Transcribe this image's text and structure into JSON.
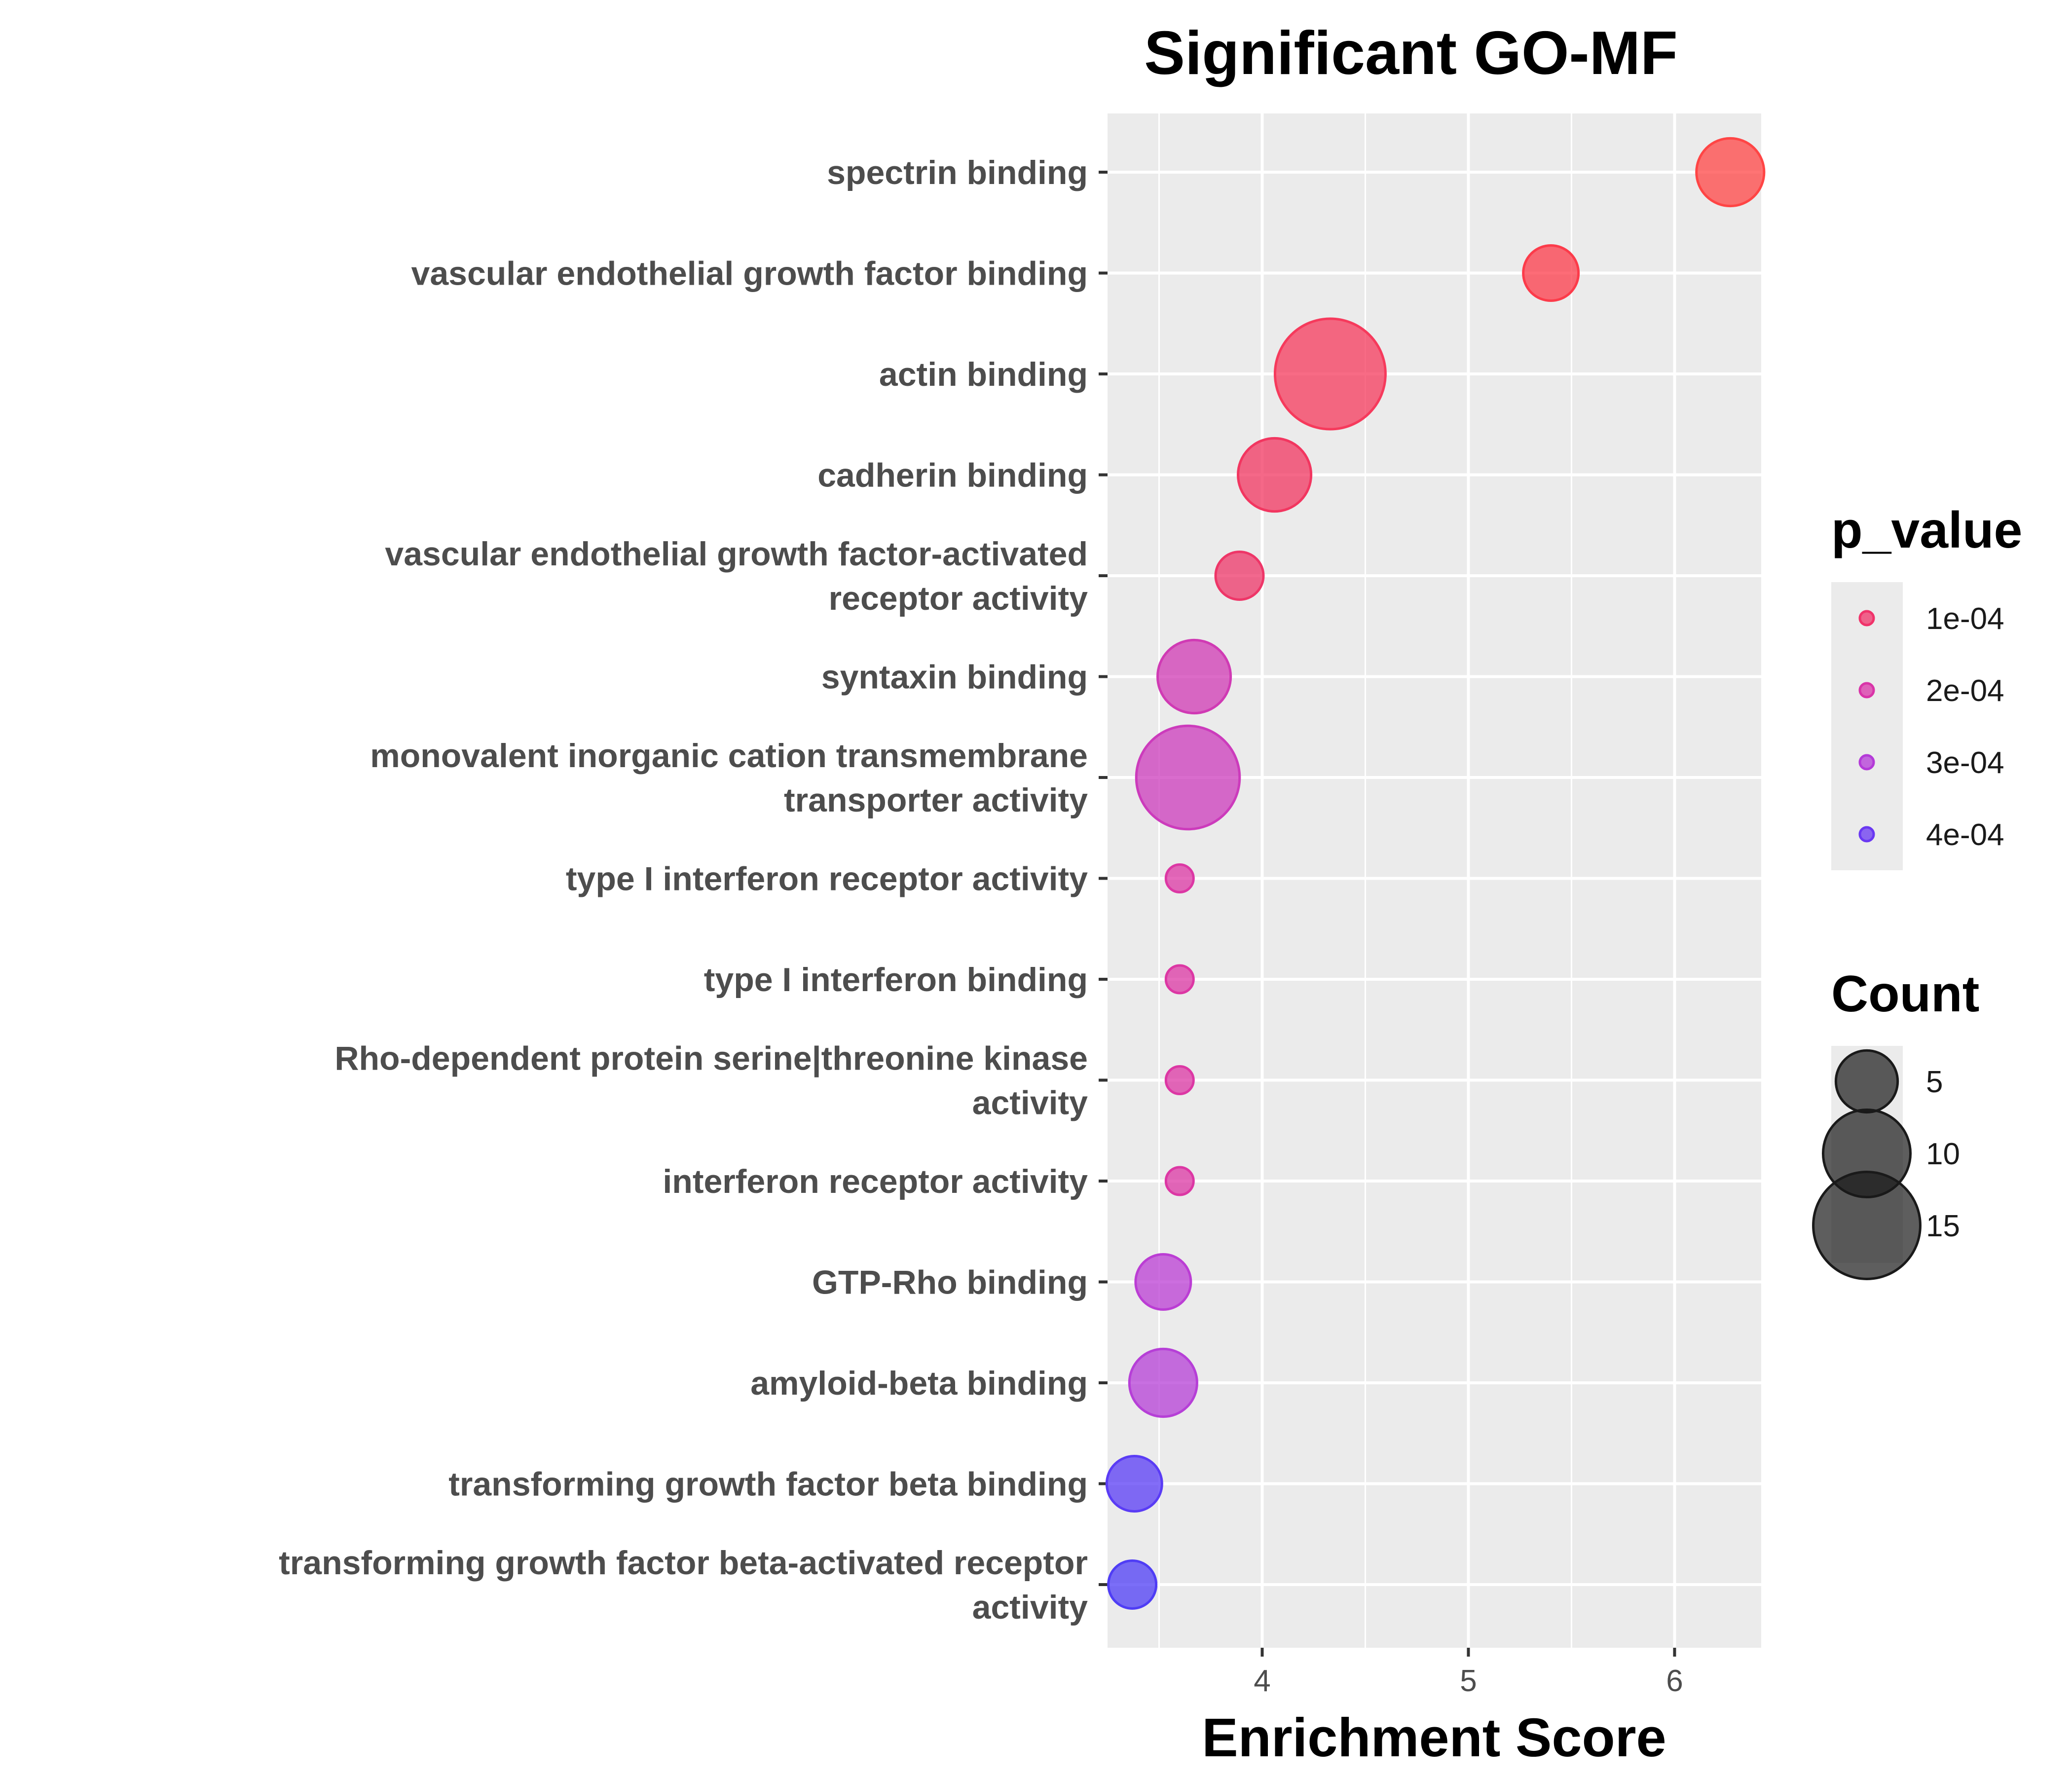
{
  "chart_data": {
    "type": "scatter",
    "title": "Significant GO-MF",
    "xlabel": "Enrichment Score",
    "ylabel": "",
    "xlim": [
      3.25,
      6.42
    ],
    "xticks": [
      "4",
      "5",
      "6"
    ],
    "grid": true,
    "legend_position": "right",
    "points": [
      {
        "term": "spectrin binding",
        "lines": [
          "spectrin binding"
        ],
        "enrichment_score": 6.27,
        "p_value": 3e-05,
        "count": 6,
        "color": "#ff4545"
      },
      {
        "term": "vascular endothelial growth factor binding",
        "lines": [
          "vascular endothelial growth factor binding"
        ],
        "enrichment_score": 5.4,
        "p_value": 4e-05,
        "count": 4,
        "color": "#fc3b4a"
      },
      {
        "term": "actin binding",
        "lines": [
          "actin binding"
        ],
        "enrichment_score": 4.33,
        "p_value": 9e-05,
        "count": 16,
        "color": "#f63a5c"
      },
      {
        "term": "cadherin binding",
        "lines": [
          "cadherin binding"
        ],
        "enrichment_score": 4.06,
        "p_value": 9e-05,
        "count": 7,
        "color": "#f23660"
      },
      {
        "term": "vascular endothelial growth factor-activated receptor activity",
        "lines": [
          "vascular endothelial growth factor-activated",
          "receptor activity"
        ],
        "enrichment_score": 3.89,
        "p_value": 0.00011,
        "count": 3,
        "color": "#ee3668"
      },
      {
        "term": "syntaxin binding",
        "lines": [
          "syntaxin binding"
        ],
        "enrichment_score": 3.67,
        "p_value": 0.00022,
        "count": 7,
        "color": "#d03ab4"
      },
      {
        "term": "monovalent inorganic cation transmembrane transporter activity",
        "lines": [
          "monovalent inorganic cation transmembrane",
          "transporter activity"
        ],
        "enrichment_score": 3.64,
        "p_value": 0.00023,
        "count": 14,
        "color": "#cc3bbc"
      },
      {
        "term": "type I interferon receptor activity",
        "lines": [
          "type I interferon receptor activity"
        ],
        "enrichment_score": 3.6,
        "p_value": 0.00019,
        "count": 1,
        "color": "#dc37a4"
      },
      {
        "term": "type I interferon binding",
        "lines": [
          "type I interferon binding"
        ],
        "enrichment_score": 3.6,
        "p_value": 0.00019,
        "count": 1,
        "color": "#dc37a4"
      },
      {
        "term": "Rho-dependent protein serine|threonine kinase activity",
        "lines": [
          "Rho-dependent protein serine|threonine kinase",
          "activity"
        ],
        "enrichment_score": 3.6,
        "p_value": 0.00019,
        "count": 1,
        "color": "#dc37a4"
      },
      {
        "term": "interferon receptor activity",
        "lines": [
          "interferon receptor activity"
        ],
        "enrichment_score": 3.6,
        "p_value": 0.00019,
        "count": 1,
        "color": "#dc37a4"
      },
      {
        "term": "GTP-Rho binding",
        "lines": [
          "GTP-Rho binding"
        ],
        "enrichment_score": 3.52,
        "p_value": 0.00029,
        "count": 4,
        "color": "#bb3dd4"
      },
      {
        "term": "amyloid-beta binding",
        "lines": [
          "amyloid-beta binding"
        ],
        "enrichment_score": 3.52,
        "p_value": 0.00029,
        "count": 6,
        "color": "#b63fd7"
      },
      {
        "term": "transforming growth factor beta binding",
        "lines": [
          "transforming growth factor beta binding"
        ],
        "enrichment_score": 3.38,
        "p_value": 0.00043,
        "count": 4,
        "color": "#5a3cf5"
      },
      {
        "term": "transforming growth factor beta-activated receptor activity",
        "lines": [
          "transforming growth factor beta-activated receptor",
          "activity"
        ],
        "enrichment_score": 3.37,
        "p_value": 0.00043,
        "count": 3,
        "color": "#4f3df5"
      }
    ],
    "legend_color": {
      "title": "p_value",
      "items": [
        {
          "label": "1e-04",
          "color": "#f0336a"
        },
        {
          "label": "2e-04",
          "color": "#d934a8"
        },
        {
          "label": "3e-04",
          "color": "#b43ad8"
        },
        {
          "label": "4e-04",
          "color": "#6a38f2"
        }
      ]
    },
    "legend_size": {
      "title": "Count",
      "items": [
        {
          "label": "5",
          "count": 5
        },
        {
          "label": "10",
          "count": 10
        },
        {
          "label": "15",
          "count": 15
        }
      ]
    }
  }
}
